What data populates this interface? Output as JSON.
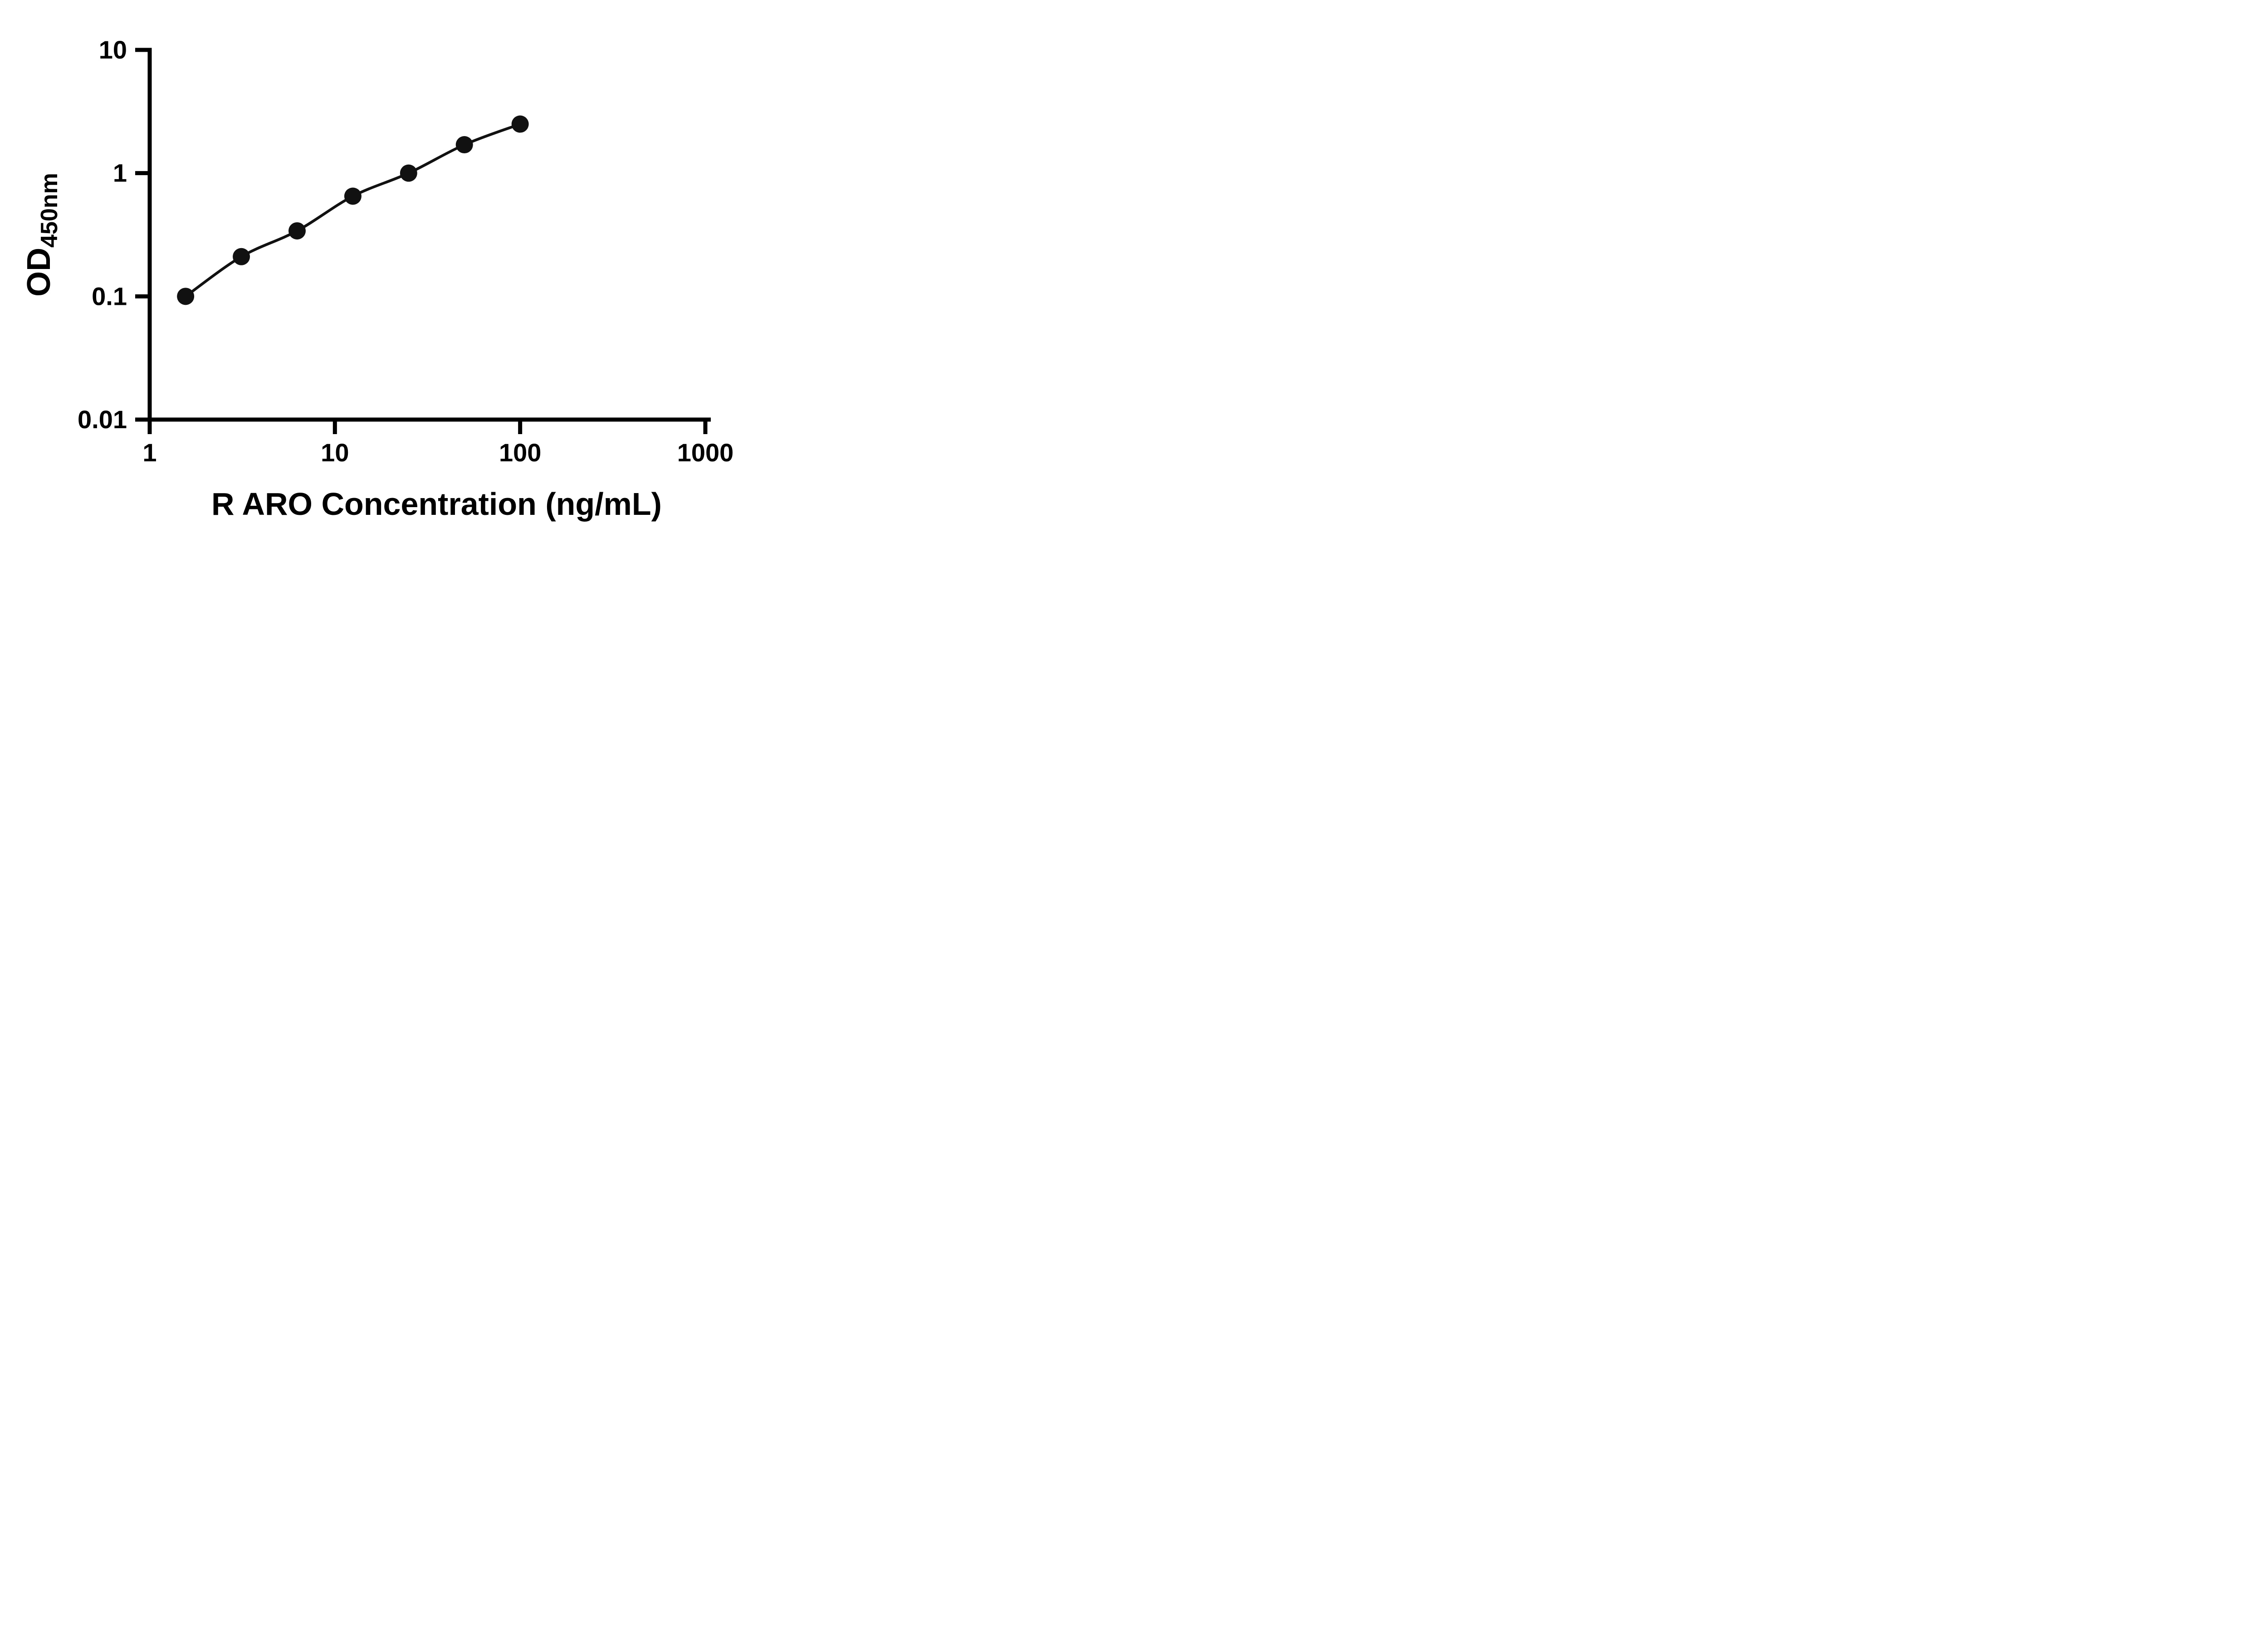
{
  "figure": {
    "description_label": "ELISA standard curve"
  },
  "chart_data": {
    "type": "line",
    "title": "",
    "xlabel": "R ARO Concentration (ng/mL)",
    "ylabel_prefix": "OD",
    "ylabel_subscript": "450nm",
    "xscale": "log",
    "yscale": "log",
    "xlim": [
      1,
      1000
    ],
    "ylim": [
      0.01,
      10
    ],
    "x": [
      1.5625,
      3.125,
      6.25,
      12.5,
      25,
      50,
      100
    ],
    "y": [
      0.1,
      0.21,
      0.34,
      0.65,
      1.0,
      1.7,
      2.5
    ],
    "x_ticks": [
      1,
      10,
      100,
      1000
    ],
    "x_tick_labels": [
      "1",
      "10",
      "100",
      "1000"
    ],
    "y_ticks": [
      0.01,
      0.1,
      1,
      10
    ],
    "y_tick_labels": [
      "0.01",
      "0.1",
      "1",
      "10"
    ],
    "grid": "off",
    "legend": "none",
    "marker_color": "#111111",
    "line_color": "#111111",
    "axis_color": "#000000",
    "background": "#ffffff"
  }
}
